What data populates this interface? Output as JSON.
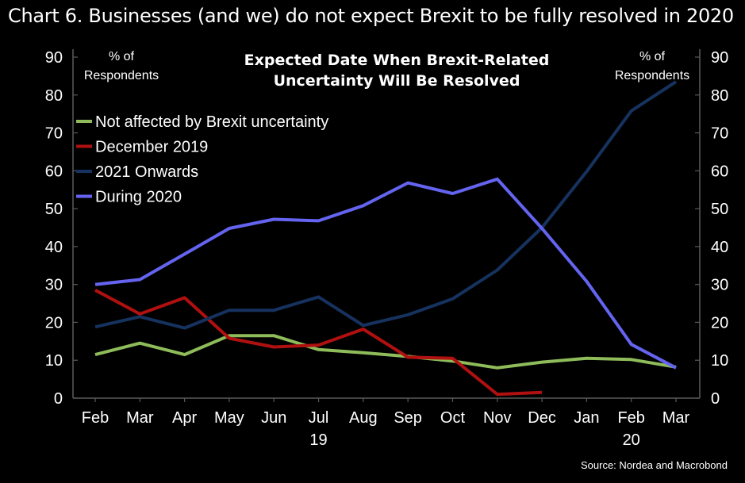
{
  "heading": "Chart 6. Businesses (and we) do not expect Brexit to be fully resolved in 2020",
  "chart_data": {
    "type": "line",
    "title_lines": [
      "Expected Date When Brexit-Related",
      "Uncertainty Will Be Resolved"
    ],
    "left_axis_unit": [
      "% of",
      "Respondents"
    ],
    "right_axis_unit": [
      "% of",
      "Respondents"
    ],
    "categories": [
      "Feb",
      "Mar",
      "Apr",
      "May",
      "Jun",
      "Jul",
      "Aug",
      "Sep",
      "Oct",
      "Nov",
      "Dec",
      "Jan",
      "Feb",
      "Mar"
    ],
    "year_labels": [
      {
        "index": 5,
        "label": "19"
      },
      {
        "index": 12,
        "label": "20"
      }
    ],
    "ylim": [
      0,
      90
    ],
    "yticks": [
      0,
      10,
      20,
      30,
      40,
      50,
      60,
      70,
      80,
      90
    ],
    "grid": false,
    "legend_position": "top-left",
    "series": [
      {
        "name": "Not affected by Brexit uncertainty",
        "color": "#8fbc5a",
        "values": [
          11.5,
          14.5,
          11.5,
          16.5,
          16.5,
          12.8,
          12.0,
          11.0,
          9.8,
          8.0,
          9.5,
          10.5,
          10.2,
          8.2
        ]
      },
      {
        "name": "December 2019",
        "color": "#b01010",
        "values": [
          28.5,
          22.2,
          26.5,
          15.8,
          13.5,
          14.0,
          18.2,
          10.8,
          10.5,
          1.0,
          1.5,
          null,
          null,
          null
        ]
      },
      {
        "name": "2021 Onwards",
        "color": "#16325e",
        "values": [
          18.8,
          21.5,
          18.5,
          23.2,
          23.2,
          26.7,
          19.2,
          22.0,
          26.2,
          33.8,
          45.0,
          59.8,
          75.8,
          83.5
        ]
      },
      {
        "name": "During 2020",
        "color": "#6464f0",
        "values": [
          30.0,
          31.3,
          38.0,
          44.8,
          47.2,
          46.8,
          50.8,
          56.8,
          54.0,
          57.8,
          44.8,
          30.8,
          14.2,
          8.0
        ]
      }
    ],
    "source": "Source: Nordea and Macrobond"
  }
}
